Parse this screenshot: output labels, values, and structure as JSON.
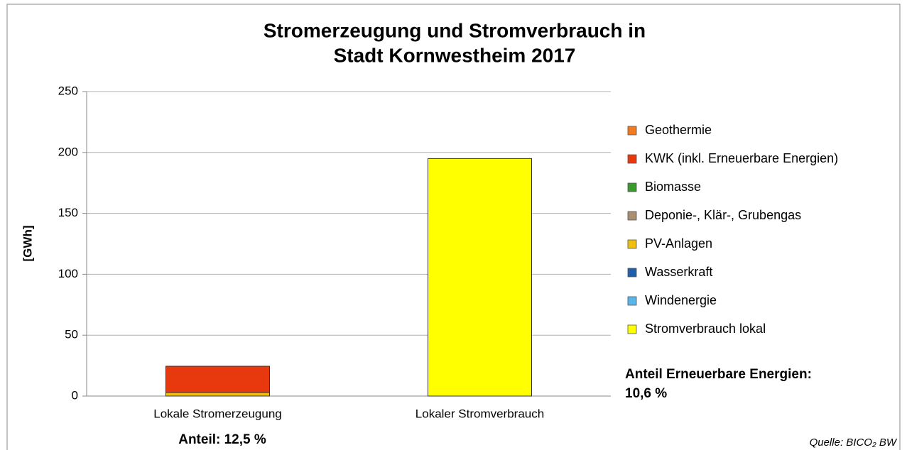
{
  "chart_data": {
    "type": "stacked_bar",
    "title": [
      "Stromerzeugung und Stromverbrauch in",
      "Stadt Kornwestheim 2017"
    ],
    "y_label": "[GWh]",
    "categories": [
      "Lokale Stromerzeugung",
      "Lokaler Stromverbrauch"
    ],
    "series": [
      {
        "name": "Geothermie",
        "color": "#f07b20",
        "values": [
          0,
          0
        ]
      },
      {
        "name": "KWK (inkl. Erneuerbare Energien)",
        "color": "#e8380d",
        "values": [
          21.5,
          0
        ]
      },
      {
        "name": "Biomasse",
        "color": "#3a9a2e",
        "values": [
          0,
          0
        ]
      },
      {
        "name": "Deponie-, Klär-, Grubengas",
        "color": "#a89070",
        "values": [
          0,
          0
        ]
      },
      {
        "name": "PV-Anlagen",
        "color": "#f0c010",
        "values": [
          3,
          0
        ]
      },
      {
        "name": "Wasserkraft",
        "color": "#1f5fa8",
        "values": [
          0,
          0
        ]
      },
      {
        "name": "Windenergie",
        "color": "#5bb6e8",
        "values": [
          0,
          0
        ]
      },
      {
        "name": "Stromverbrauch lokal",
        "color": "#ffff00",
        "values": [
          0,
          195
        ]
      }
    ],
    "ylim": [
      0,
      250
    ],
    "yticks": [
      0,
      50,
      100,
      150,
      200,
      250
    ],
    "grid": true,
    "annotations": [
      "Anteil: 12,5 %",
      "Anteil Erneuerbare Energien:",
      "10,6 %",
      "Quelle: BICO₂ BW"
    ]
  }
}
